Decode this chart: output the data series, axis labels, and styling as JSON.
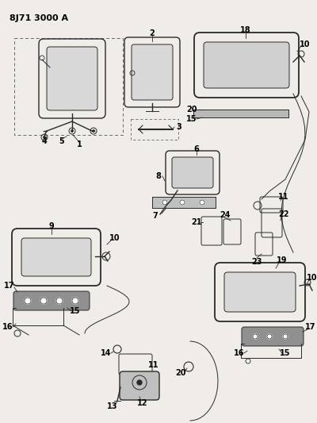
{
  "title": "8J71 3000 A",
  "bg_color": "#f0ede8",
  "line_color": "#2a2a2a",
  "label_color": "#000000",
  "fig_width": 4.0,
  "fig_height": 5.33,
  "dpi": 100
}
